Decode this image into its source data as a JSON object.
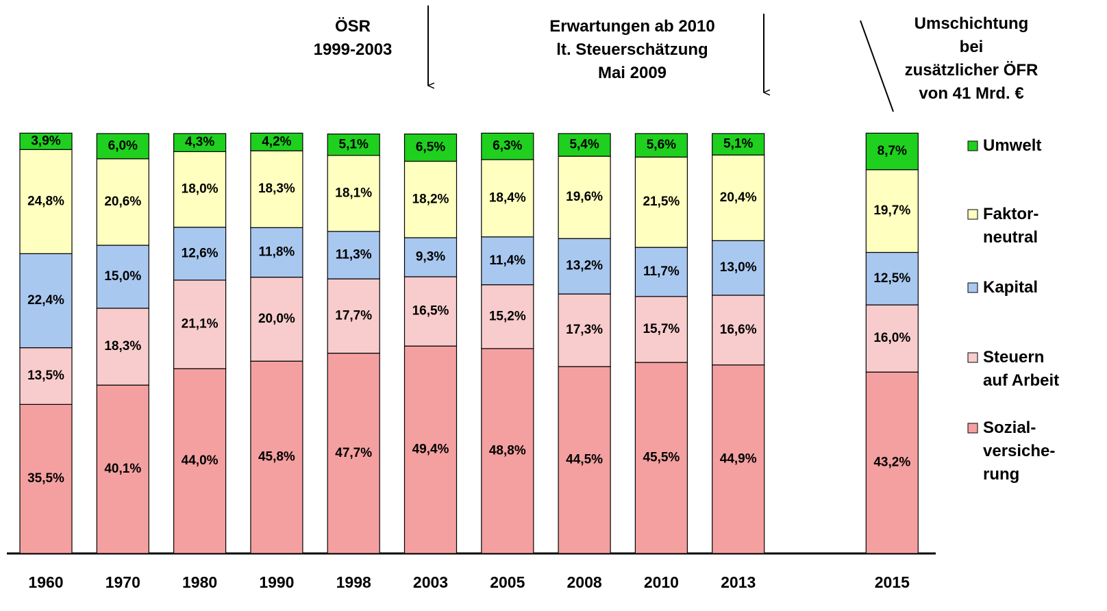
{
  "chart_data": {
    "type": "stacked_bar",
    "categories": [
      "1960",
      "1970",
      "1980",
      "1990",
      "1998",
      "2003",
      "2005",
      "2008",
      "2010",
      "2013",
      null,
      "2015"
    ],
    "series": [
      {
        "name": "Sozial-\nversiche-\nrung",
        "color": "#f4a0a0",
        "values": [
          35.5,
          40.1,
          44.0,
          45.8,
          47.7,
          49.4,
          48.8,
          44.5,
          45.5,
          44.9,
          null,
          43.2
        ],
        "value_labels": [
          "35,5%",
          "40,1%",
          "44,0%",
          "45,8%",
          "47,7%",
          "49,4%",
          "48,8%",
          "44,5%",
          "45,5%",
          "44,9%",
          null,
          "43,2%"
        ]
      },
      {
        "name": "Steuern\nauf Arbeit",
        "color": "#f8cccc",
        "values": [
          13.5,
          18.3,
          21.1,
          20.0,
          17.7,
          16.5,
          15.2,
          17.3,
          15.7,
          16.6,
          null,
          16.0
        ],
        "value_labels": [
          "13,5%",
          "18,3%",
          "21,1%",
          "20,0%",
          "17,7%",
          "16,5%",
          "15,2%",
          "17,3%",
          "15,7%",
          "16,6%",
          null,
          "16,0%"
        ]
      },
      {
        "name": "Kapital",
        "color": "#a9c8f0",
        "values": [
          22.4,
          15.0,
          12.6,
          11.8,
          11.3,
          9.3,
          11.4,
          13.2,
          11.7,
          13.0,
          null,
          12.5
        ],
        "value_labels": [
          "22,4%",
          "15,0%",
          "12,6%",
          "11,8%",
          "11,3%",
          "9,3%",
          "11,4%",
          "13,2%",
          "11,7%",
          "13,0%",
          null,
          "12,5%"
        ]
      },
      {
        "name": "Faktor-\nneutral",
        "color": "#ffffc0",
        "values": [
          24.8,
          20.6,
          18.0,
          18.3,
          18.1,
          18.2,
          18.4,
          19.6,
          21.5,
          20.4,
          null,
          19.7
        ],
        "value_labels": [
          "24,8%",
          "20,6%",
          "18,0%",
          "18,3%",
          "18,1%",
          "18,2%",
          "18,4%",
          "19,6%",
          "21,5%",
          "20,4%",
          null,
          "19,7%"
        ]
      },
      {
        "name": "Umwelt",
        "color": "#1fd01f",
        "values": [
          3.9,
          6.0,
          4.3,
          4.2,
          5.1,
          6.5,
          6.3,
          5.4,
          5.6,
          5.1,
          null,
          8.7
        ],
        "value_labels": [
          "3,9%",
          "6,0%",
          "4,3%",
          "4,2%",
          "5,1%",
          "6,5%",
          "6,3%",
          "5,4%",
          "5,6%",
          "5,1%",
          null,
          "8,7%"
        ]
      }
    ],
    "annotations": [
      "ÖSR\n1999-2003",
      "Erwartungen ab 2010\nlt. Steuerschätzung\nMai 2009",
      "Umschichtung bei\nzusätzlicher ÖFR\nvon 41 Mrd. €"
    ]
  }
}
